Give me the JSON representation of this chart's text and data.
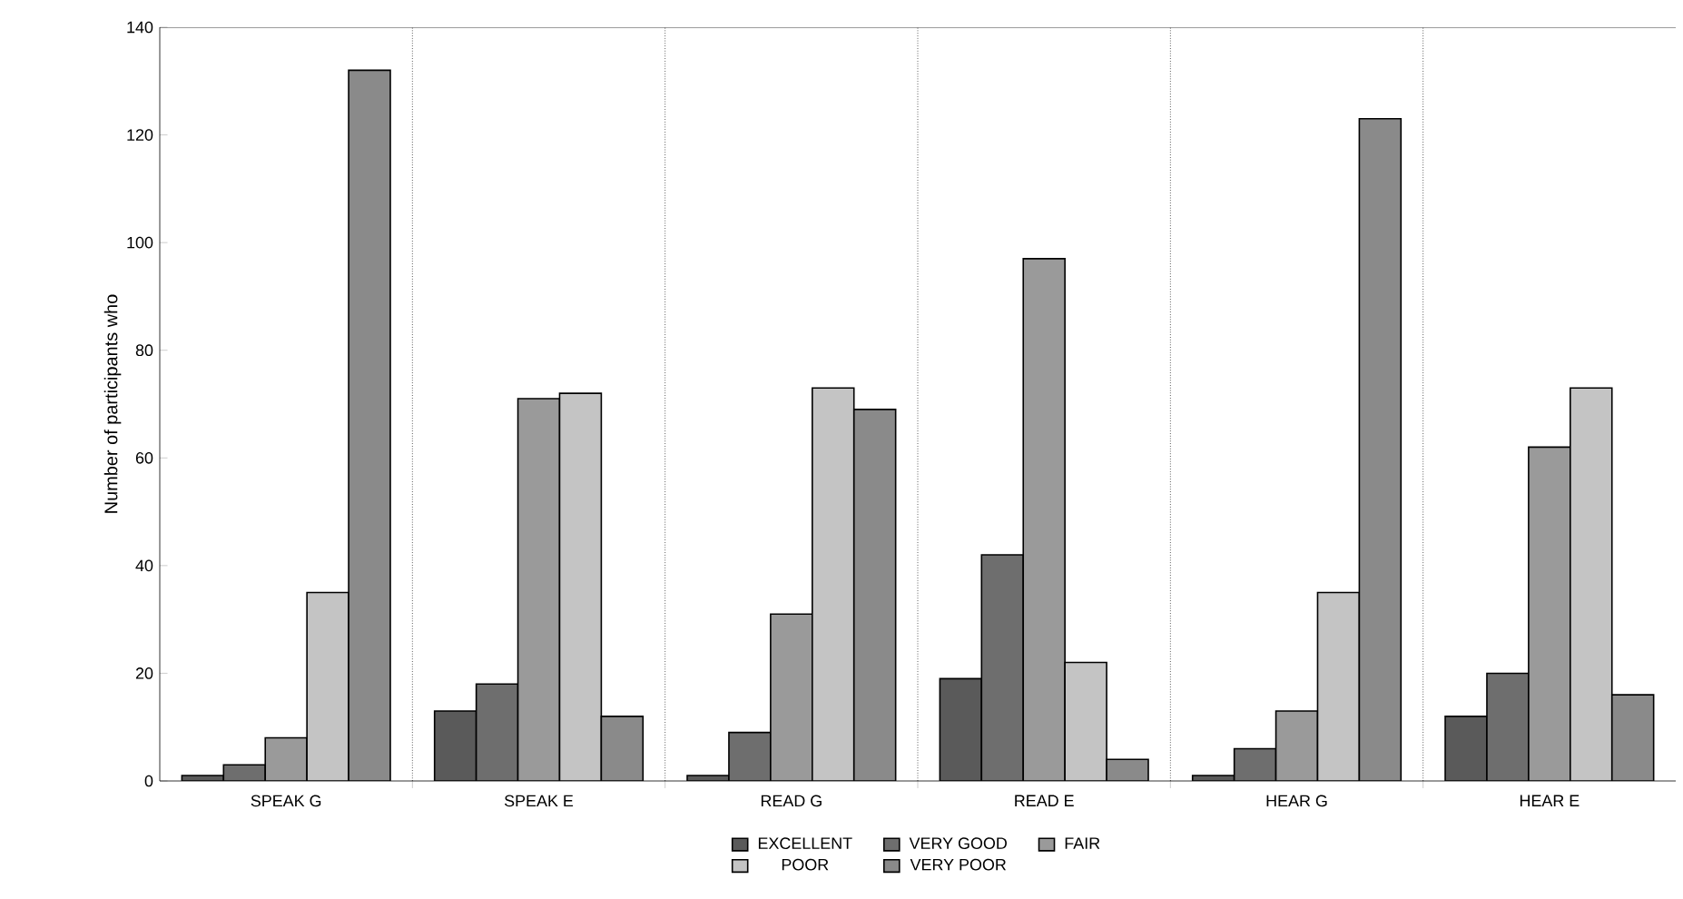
{
  "chart_data": {
    "type": "bar",
    "ylabel": "Number of participants who",
    "categories": [
      "SPEAK G",
      "SPEAK E",
      "READ G",
      "READ E",
      "HEAR G",
      "HEAR E"
    ],
    "series": [
      {
        "name": "EXCELLENT",
        "color": "#5a5a5a",
        "values": [
          1,
          13,
          1,
          19,
          1,
          12
        ]
      },
      {
        "name": "VERY GOOD",
        "color": "#6e6e6e",
        "values": [
          3,
          18,
          9,
          42,
          6,
          20
        ]
      },
      {
        "name": "FAIR",
        "color": "#9a9a9a",
        "values": [
          8,
          71,
          31,
          97,
          13,
          62
        ]
      },
      {
        "name": "POOR",
        "color": "#c4c4c4",
        "values": [
          35,
          72,
          73,
          22,
          35,
          73
        ]
      },
      {
        "name": "VERY POOR",
        "color": "#8a8a8a",
        "values": [
          132,
          12,
          69,
          4,
          123,
          16
        ]
      }
    ],
    "ylim": [
      0,
      140
    ],
    "yticks": [
      0,
      20,
      40,
      60,
      80,
      100,
      120,
      140
    ],
    "grid": "x",
    "legend": "bottom"
  }
}
